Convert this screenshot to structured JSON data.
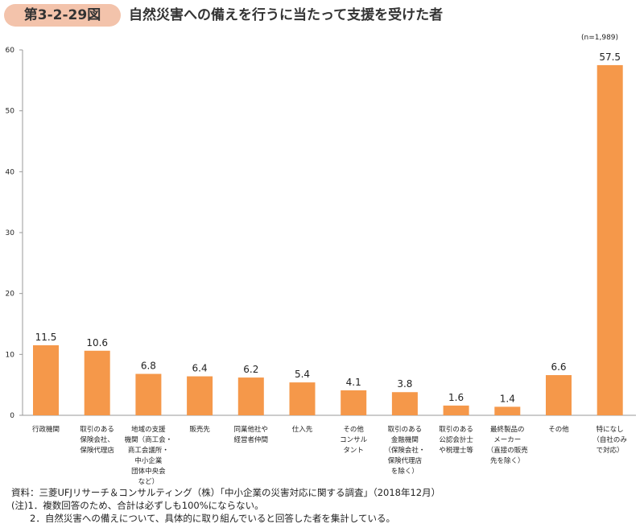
{
  "figure_number": "第3-2-29図",
  "title": "自然災害への備えを行うに当たって支援を受けた者",
  "sample_size": "(n=1,989)",
  "chart_data": {
    "type": "bar",
    "categories": [
      "行政機関",
      "取引のある\n保険会社、\n保険代理店",
      "地域の支援\n機関（商工会・\n商工会議所・\n中小企業\n団体中央会\nなど）",
      "販売先",
      "同業他社や\n経営者仲間",
      "仕入先",
      "その他\nコンサル\nタント",
      "取引のある\n金融機関\n（保険会社・\n保険代理店\nを除く）",
      "取引のある\n公認会計士\nや税理士等",
      "最終製品の\nメーカー\n（直接の販売\n先を除く）",
      "その他",
      "特になし\n（自社のみ\nで対応）"
    ],
    "values": [
      11.5,
      10.6,
      6.8,
      6.4,
      6.2,
      5.4,
      4.1,
      3.8,
      1.6,
      1.4,
      6.6,
      57.5
    ],
    "value_labels": [
      "11.5",
      "10.6",
      "6.8",
      "6.4",
      "6.2",
      "5.4",
      "4.1",
      "3.8",
      "1.6",
      "1.4",
      "6.6",
      "57.5"
    ],
    "yticks": [
      "0",
      "10",
      "20",
      "30",
      "40",
      "50",
      "60"
    ],
    "ylim": [
      0,
      60
    ],
    "grid": false,
    "bar_color": "#f5984a"
  },
  "notes": [
    "資料：三菱UFJリサーチ＆コンサルティング（株）「中小企業の災害対応に関する調査」（2018年12月）",
    "(注)1．複数回答のため、合計は必ずしも100%にならない。",
    "　　2．自然災害への備えについて、具体的に取り組んでいると回答した者を集計している。"
  ]
}
